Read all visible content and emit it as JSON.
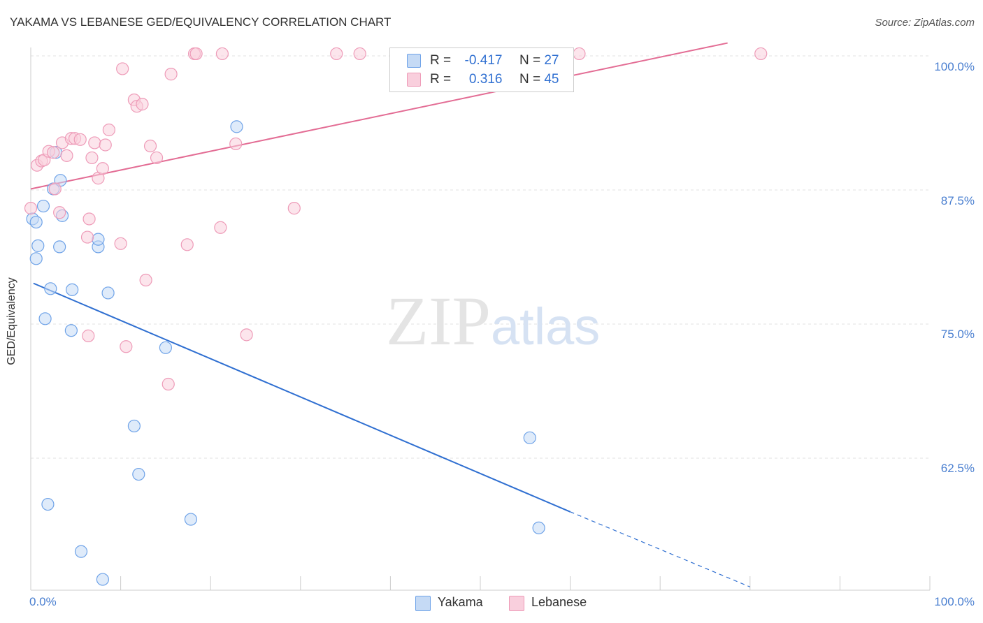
{
  "chart_data": {
    "type": "scatter",
    "title": "YAKAMA VS LEBANESE GED/EQUIVALENCY CORRELATION CHART",
    "source": "Source: ZipAtlas.com",
    "ylabel": "GED/Equivalency",
    "xlim": [
      0,
      100
    ],
    "ylim": [
      51,
      102
    ],
    "x_tick_labels": [
      "0.0%",
      "100.0%"
    ],
    "y_ticks": [
      {
        "value": 100,
        "label": "100.0%"
      },
      {
        "value": 87.5,
        "label": "87.5%"
      },
      {
        "value": 75,
        "label": "75.0%"
      },
      {
        "value": 62.5,
        "label": "62.5%"
      }
    ],
    "grid": true,
    "watermark": {
      "zip": "ZIP",
      "atlas": "atlas"
    },
    "legend_position": "top-center",
    "series": [
      {
        "name": "Yakama",
        "color": "#6fa3e8",
        "fill": "#c5daf5",
        "line_color": "#2f6fd1",
        "R": "-0.417",
        "N": "27",
        "trend": {
          "x0": 0.3,
          "y0": 78.8,
          "x1": 60,
          "y1": 57.5,
          "dash_x1": 80,
          "dash_y1": 50.5
        },
        "points": [
          [
            0.2,
            84.8
          ],
          [
            0.6,
            84.5
          ],
          [
            0.6,
            81.1
          ],
          [
            0.8,
            82.3
          ],
          [
            1.4,
            86
          ],
          [
            1.6,
            75.5
          ],
          [
            1.9,
            58.2
          ],
          [
            2.2,
            78.3
          ],
          [
            2.5,
            87.6
          ],
          [
            2.8,
            91
          ],
          [
            3.2,
            82.2
          ],
          [
            3.3,
            88.4
          ],
          [
            3.5,
            85.1
          ],
          [
            4.5,
            74.4
          ],
          [
            4.6,
            78.2
          ],
          [
            5.6,
            53.8
          ],
          [
            7.5,
            82.2
          ],
          [
            7.5,
            82.9
          ],
          [
            8,
            51.2
          ],
          [
            8.6,
            77.9
          ],
          [
            11.5,
            65.5
          ],
          [
            12,
            61
          ],
          [
            15,
            72.8
          ],
          [
            17.8,
            56.8
          ],
          [
            22.9,
            93.4
          ],
          [
            55.5,
            64.4
          ],
          [
            56.5,
            56
          ]
        ]
      },
      {
        "name": "Lebanese",
        "color": "#ee9bb8",
        "fill": "#f9cfdd",
        "line_color": "#e36c94",
        "R": "0.316",
        "N": "45",
        "trend": {
          "x0": 0,
          "y0": 87.6,
          "x1": 77.5,
          "y1": 101.2
        },
        "points": [
          [
            0,
            85.8
          ],
          [
            0.7,
            89.8
          ],
          [
            1.2,
            90.2
          ],
          [
            1.5,
            90.3
          ],
          [
            2,
            91.1
          ],
          [
            2.5,
            91
          ],
          [
            2.7,
            87.6
          ],
          [
            3.2,
            85.4
          ],
          [
            3.5,
            91.9
          ],
          [
            4,
            90.7
          ],
          [
            4.5,
            92.3
          ],
          [
            4.9,
            92.3
          ],
          [
            5.5,
            92.2
          ],
          [
            6.3,
            83.1
          ],
          [
            6.4,
            73.9
          ],
          [
            6.5,
            84.8
          ],
          [
            6.8,
            90.5
          ],
          [
            7.1,
            91.9
          ],
          [
            7.5,
            88.6
          ],
          [
            8,
            89.5
          ],
          [
            8.3,
            91.7
          ],
          [
            8.7,
            93.1
          ],
          [
            10,
            82.5
          ],
          [
            10.2,
            98.8
          ],
          [
            10.6,
            72.9
          ],
          [
            11.5,
            95.9
          ],
          [
            11.8,
            95.3
          ],
          [
            12.4,
            95.5
          ],
          [
            12.8,
            79.1
          ],
          [
            13.3,
            91.6
          ],
          [
            14,
            90.5
          ],
          [
            15.3,
            69.4
          ],
          [
            15.6,
            98.3
          ],
          [
            17.4,
            82.4
          ],
          [
            18.2,
            100.2
          ],
          [
            18.4,
            100.2
          ],
          [
            21.1,
            84
          ],
          [
            21.3,
            100.2
          ],
          [
            22.8,
            91.8
          ],
          [
            24,
            74
          ],
          [
            29.3,
            85.8
          ],
          [
            34,
            100.2
          ],
          [
            36.6,
            100.2
          ],
          [
            61,
            100.2
          ],
          [
            81.2,
            100.2
          ]
        ]
      }
    ]
  },
  "legend": {
    "r_label": "R =",
    "n_label": "N ="
  }
}
